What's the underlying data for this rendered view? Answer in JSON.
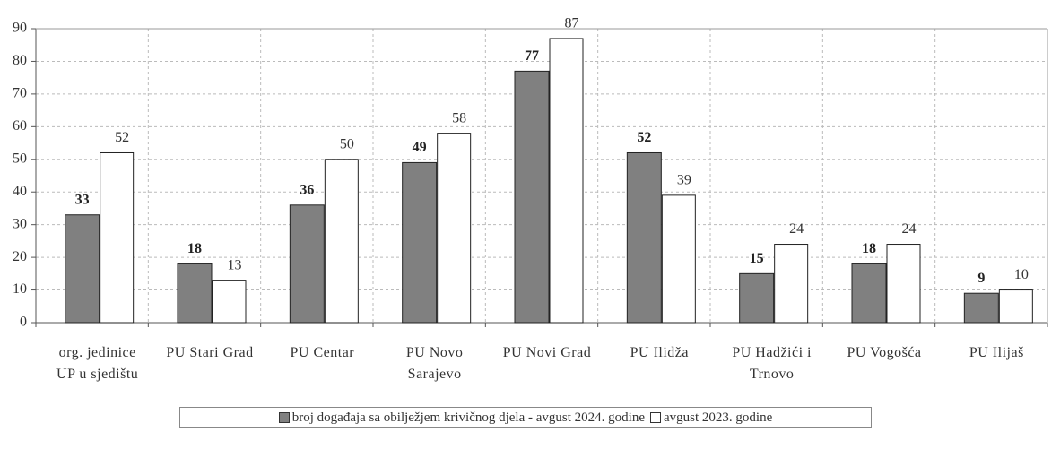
{
  "chart_data": {
    "type": "bar",
    "categories": [
      "org. jedinice UP u sjedištu",
      "PU Stari Grad",
      "PU Centar",
      "PU Novo Sarajevo",
      "PU Novi Grad",
      "PU Ilidža",
      "PU Hadžići i Trnovo",
      "PU Vogošća",
      "PU Ilijaš"
    ],
    "series": [
      {
        "name": "broj događaja sa obilježjem krivičnog djela - avgust 2024. godine",
        "color": "#808080",
        "values": [
          33,
          18,
          36,
          49,
          77,
          52,
          15,
          18,
          9
        ]
      },
      {
        "name": "avgust 2023. godine",
        "color": "#ffffff",
        "values": [
          52,
          13,
          50,
          58,
          87,
          39,
          24,
          24,
          10
        ]
      }
    ],
    "ylim": [
      0,
      90
    ],
    "yticks": [
      0,
      10,
      20,
      30,
      40,
      50,
      60,
      70,
      80,
      90
    ],
    "grid": true,
    "legend": "bottom"
  }
}
